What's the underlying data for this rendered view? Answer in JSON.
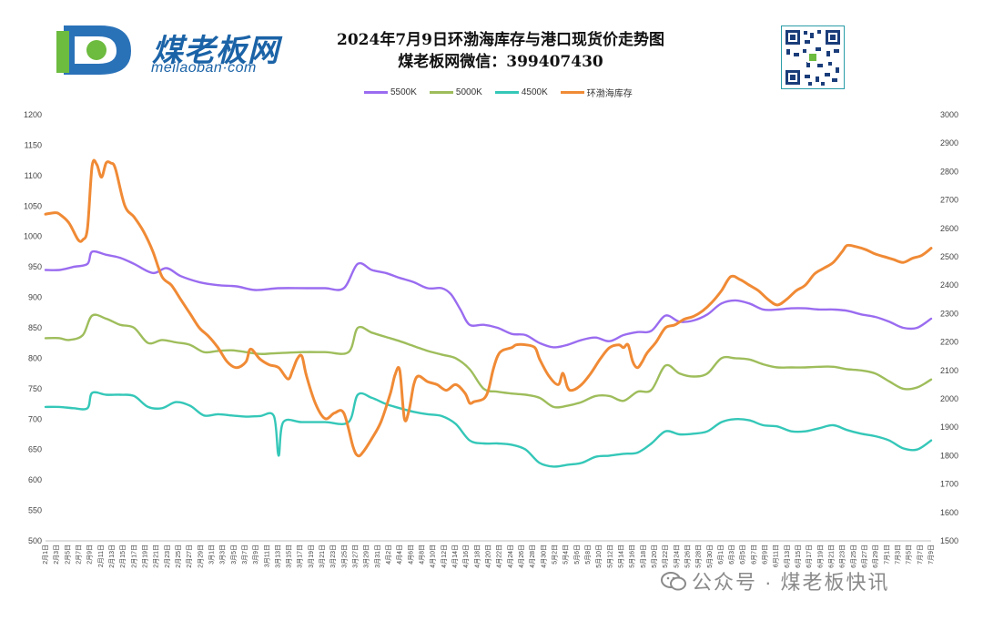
{
  "header": {
    "logo_main": "煤老板网",
    "logo_sub": "meilaoban·com",
    "title_line1": "2024年7月9日环渤海库存与港口现货价走势图",
    "title_line2": "煤老板网微信：399407430"
  },
  "watermark": {
    "text": "公众号 · 煤老板快讯"
  },
  "colors": {
    "s5500": "#9a6cf0",
    "s5000": "#9ebd5b",
    "s4500": "#34c7b8",
    "inventory": "#f08a35"
  },
  "chart_data": {
    "type": "line",
    "legend_position": "top",
    "grid": false,
    "y_left": {
      "min": 500,
      "max": 1200,
      "step": 50
    },
    "y_right": {
      "min": 1500,
      "max": 3000,
      "step": 100
    },
    "x_labels": [
      "2月1日",
      "2月3日",
      "2月5日",
      "2月7日",
      "2月9日",
      "2月11日",
      "2月13日",
      "2月15日",
      "2月17日",
      "2月19日",
      "2月21日",
      "2月23日",
      "2月25日",
      "2月27日",
      "2月29日",
      "3月1日",
      "3月3日",
      "3月5日",
      "3月7日",
      "3月9日",
      "3月11日",
      "3月13日",
      "3月15日",
      "3月17日",
      "3月19日",
      "3月21日",
      "3月23日",
      "3月25日",
      "3月27日",
      "3月29日",
      "3月31日",
      "4月2日",
      "4月4日",
      "4月6日",
      "4月8日",
      "4月10日",
      "4月12日",
      "4月14日",
      "4月16日",
      "4月18日",
      "4月20日",
      "4月22日",
      "4月24日",
      "4月26日",
      "4月28日",
      "4月30日",
      "5月2日",
      "5月4日",
      "5月6日",
      "5月8日",
      "5月10日",
      "5月12日",
      "5月14日",
      "5月16日",
      "5月18日",
      "5月20日",
      "5月22日",
      "5月24日",
      "5月26日",
      "5月28日",
      "5月30日",
      "6月1日",
      "6月3日",
      "6月5日",
      "6月7日",
      "6月9日",
      "6月11日",
      "6月13日",
      "6月15日",
      "6月17日",
      "6月19日",
      "6月21日",
      "6月23日",
      "6月25日",
      "6月27日",
      "6月29日",
      "7月1日",
      "7月3日",
      "7月5日",
      "7月7日",
      "7月9日"
    ],
    "series": [
      {
        "name": "5500K",
        "axis": "left",
        "points": [
          [
            0,
            945
          ],
          [
            3,
            945
          ],
          [
            6,
            950
          ],
          [
            9,
            955
          ],
          [
            10,
            975
          ],
          [
            13,
            970
          ],
          [
            16,
            965
          ],
          [
            19,
            955
          ],
          [
            23,
            940
          ],
          [
            26,
            948
          ],
          [
            29,
            935
          ],
          [
            33,
            925
          ],
          [
            37,
            920
          ],
          [
            41,
            918
          ],
          [
            45,
            912
          ],
          [
            50,
            915
          ],
          [
            56,
            915
          ],
          [
            60,
            915
          ],
          [
            64,
            915
          ],
          [
            67,
            955
          ],
          [
            70,
            945
          ],
          [
            73,
            940
          ],
          [
            76,
            932
          ],
          [
            79,
            925
          ],
          [
            82,
            915
          ],
          [
            85,
            915
          ],
          [
            87,
            905
          ],
          [
            89,
            880
          ],
          [
            91,
            855
          ],
          [
            94,
            855
          ],
          [
            97,
            850
          ],
          [
            100,
            840
          ],
          [
            103,
            838
          ],
          [
            106,
            825
          ],
          [
            109,
            818
          ],
          [
            112,
            822
          ],
          [
            115,
            830
          ],
          [
            118,
            834
          ],
          [
            121,
            828
          ],
          [
            124,
            838
          ],
          [
            127,
            843
          ],
          [
            130,
            845
          ],
          [
            133,
            870
          ],
          [
            136,
            860
          ],
          [
            139,
            862
          ],
          [
            142,
            872
          ],
          [
            145,
            890
          ],
          [
            148,
            895
          ],
          [
            151,
            890
          ],
          [
            154,
            880
          ],
          [
            157,
            880
          ],
          [
            160,
            882
          ],
          [
            163,
            882
          ],
          [
            166,
            880
          ],
          [
            169,
            880
          ],
          [
            172,
            878
          ],
          [
            175,
            872
          ],
          [
            178,
            868
          ],
          [
            181,
            860
          ],
          [
            184,
            850
          ],
          [
            187,
            850
          ],
          [
            190,
            865
          ]
        ]
      },
      {
        "name": "5000K",
        "axis": "left",
        "points": [
          [
            0,
            833
          ],
          [
            3,
            833
          ],
          [
            5,
            830
          ],
          [
            8,
            838
          ],
          [
            10,
            870
          ],
          [
            13,
            865
          ],
          [
            16,
            855
          ],
          [
            19,
            850
          ],
          [
            22,
            825
          ],
          [
            25,
            830
          ],
          [
            28,
            826
          ],
          [
            31,
            822
          ],
          [
            34,
            810
          ],
          [
            37,
            812
          ],
          [
            40,
            813
          ],
          [
            43,
            810
          ],
          [
            46,
            807
          ],
          [
            49,
            808
          ],
          [
            55,
            810
          ],
          [
            60,
            810
          ],
          [
            65,
            810
          ],
          [
            67,
            850
          ],
          [
            70,
            842
          ],
          [
            73,
            835
          ],
          [
            76,
            828
          ],
          [
            79,
            820
          ],
          [
            82,
            812
          ],
          [
            85,
            806
          ],
          [
            88,
            800
          ],
          [
            91,
            782
          ],
          [
            94,
            750
          ],
          [
            97,
            745
          ],
          [
            100,
            742
          ],
          [
            103,
            740
          ],
          [
            106,
            735
          ],
          [
            109,
            720
          ],
          [
            112,
            722
          ],
          [
            115,
            728
          ],
          [
            118,
            738
          ],
          [
            121,
            738
          ],
          [
            124,
            730
          ],
          [
            127,
            745
          ],
          [
            130,
            748
          ],
          [
            133,
            788
          ],
          [
            136,
            775
          ],
          [
            139,
            770
          ],
          [
            142,
            775
          ],
          [
            145,
            800
          ],
          [
            148,
            800
          ],
          [
            151,
            798
          ],
          [
            154,
            790
          ],
          [
            157,
            785
          ],
          [
            160,
            785
          ],
          [
            163,
            785
          ],
          [
            166,
            786
          ],
          [
            169,
            786
          ],
          [
            172,
            782
          ],
          [
            175,
            780
          ],
          [
            178,
            775
          ],
          [
            181,
            762
          ],
          [
            184,
            750
          ],
          [
            187,
            752
          ],
          [
            190,
            765
          ]
        ]
      },
      {
        "name": "4500K",
        "axis": "left",
        "points": [
          [
            0,
            720
          ],
          [
            3,
            720
          ],
          [
            6,
            718
          ],
          [
            9,
            718
          ],
          [
            10,
            743
          ],
          [
            13,
            740
          ],
          [
            16,
            740
          ],
          [
            19,
            738
          ],
          [
            22,
            720
          ],
          [
            25,
            718
          ],
          [
            28,
            728
          ],
          [
            31,
            722
          ],
          [
            34,
            706
          ],
          [
            37,
            708
          ],
          [
            40,
            706
          ],
          [
            43,
            704
          ],
          [
            46,
            705
          ],
          [
            49,
            705
          ],
          [
            50,
            640
          ],
          [
            51,
            695
          ],
          [
            55,
            695
          ],
          [
            60,
            695
          ],
          [
            65,
            695
          ],
          [
            67,
            740
          ],
          [
            70,
            735
          ],
          [
            73,
            725
          ],
          [
            76,
            718
          ],
          [
            79,
            712
          ],
          [
            82,
            708
          ],
          [
            85,
            705
          ],
          [
            88,
            692
          ],
          [
            91,
            665
          ],
          [
            94,
            660
          ],
          [
            97,
            660
          ],
          [
            100,
            658
          ],
          [
            103,
            650
          ],
          [
            106,
            628
          ],
          [
            109,
            622
          ],
          [
            112,
            625
          ],
          [
            115,
            628
          ],
          [
            118,
            638
          ],
          [
            121,
            640
          ],
          [
            124,
            643
          ],
          [
            127,
            645
          ],
          [
            130,
            660
          ],
          [
            133,
            680
          ],
          [
            136,
            675
          ],
          [
            139,
            676
          ],
          [
            142,
            680
          ],
          [
            145,
            695
          ],
          [
            148,
            700
          ],
          [
            151,
            698
          ],
          [
            154,
            690
          ],
          [
            157,
            688
          ],
          [
            160,
            680
          ],
          [
            163,
            680
          ],
          [
            166,
            685
          ],
          [
            169,
            690
          ],
          [
            172,
            682
          ],
          [
            175,
            676
          ],
          [
            178,
            672
          ],
          [
            181,
            665
          ],
          [
            184,
            652
          ],
          [
            187,
            650
          ],
          [
            190,
            665
          ]
        ]
      },
      {
        "name": "环渤海库存",
        "axis": "right",
        "points": [
          [
            0,
            2650
          ],
          [
            2,
            2655
          ],
          [
            3,
            2650
          ],
          [
            5,
            2620
          ],
          [
            7,
            2560
          ],
          [
            8,
            2560
          ],
          [
            9,
            2600
          ],
          [
            10,
            2820
          ],
          [
            11,
            2825
          ],
          [
            12,
            2780
          ],
          [
            13,
            2830
          ],
          [
            14,
            2830
          ],
          [
            15,
            2810
          ],
          [
            17,
            2680
          ],
          [
            19,
            2640
          ],
          [
            21,
            2590
          ],
          [
            23,
            2520
          ],
          [
            25,
            2430
          ],
          [
            27,
            2400
          ],
          [
            29,
            2350
          ],
          [
            31,
            2300
          ],
          [
            33,
            2250
          ],
          [
            35,
            2220
          ],
          [
            37,
            2180
          ],
          [
            39,
            2130
          ],
          [
            41,
            2110
          ],
          [
            43,
            2130
          ],
          [
            44,
            2175
          ],
          [
            46,
            2140
          ],
          [
            48,
            2120
          ],
          [
            50,
            2110
          ],
          [
            52,
            2070
          ],
          [
            53,
            2100
          ],
          [
            54,
            2140
          ],
          [
            55,
            2150
          ],
          [
            56,
            2080
          ],
          [
            58,
            1980
          ],
          [
            60,
            1930
          ],
          [
            62,
            1950
          ],
          [
            64,
            1950
          ],
          [
            66,
            1830
          ],
          [
            67,
            1800
          ],
          [
            68,
            1810
          ],
          [
            70,
            1860
          ],
          [
            72,
            1920
          ],
          [
            74,
            2020
          ],
          [
            75,
            2085
          ],
          [
            76,
            2100
          ],
          [
            77,
            1930
          ],
          [
            78,
            1960
          ],
          [
            79,
            2050
          ],
          [
            80,
            2080
          ],
          [
            82,
            2060
          ],
          [
            84,
            2050
          ],
          [
            86,
            2030
          ],
          [
            88,
            2050
          ],
          [
            90,
            2020
          ],
          [
            91,
            1985
          ],
          [
            92,
            1990
          ],
          [
            94,
            2000
          ],
          [
            95,
            2030
          ],
          [
            96,
            2100
          ],
          [
            97,
            2150
          ],
          [
            98,
            2170
          ],
          [
            100,
            2180
          ],
          [
            101,
            2190
          ],
          [
            103,
            2190
          ],
          [
            105,
            2180
          ],
          [
            106,
            2140
          ],
          [
            108,
            2080
          ],
          [
            110,
            2050
          ],
          [
            111,
            2090
          ],
          [
            112,
            2040
          ],
          [
            113,
            2030
          ],
          [
            115,
            2050
          ],
          [
            117,
            2090
          ],
          [
            119,
            2140
          ],
          [
            121,
            2180
          ],
          [
            123,
            2190
          ],
          [
            124,
            2180
          ],
          [
            125,
            2190
          ],
          [
            126,
            2130
          ],
          [
            127,
            2110
          ],
          [
            128,
            2130
          ],
          [
            129,
            2160
          ],
          [
            131,
            2200
          ],
          [
            133,
            2250
          ],
          [
            135,
            2260
          ],
          [
            137,
            2280
          ],
          [
            139,
            2290
          ],
          [
            141,
            2310
          ],
          [
            143,
            2340
          ],
          [
            145,
            2380
          ],
          [
            147,
            2430
          ],
          [
            149,
            2420
          ],
          [
            151,
            2400
          ],
          [
            153,
            2380
          ],
          [
            155,
            2350
          ],
          [
            157,
            2330
          ],
          [
            159,
            2350
          ],
          [
            161,
            2380
          ],
          [
            163,
            2400
          ],
          [
            165,
            2440
          ],
          [
            167,
            2460
          ],
          [
            169,
            2480
          ],
          [
            171,
            2520
          ],
          [
            172,
            2540
          ],
          [
            174,
            2535
          ],
          [
            176,
            2525
          ],
          [
            178,
            2510
          ],
          [
            180,
            2500
          ],
          [
            182,
            2490
          ],
          [
            184,
            2480
          ],
          [
            186,
            2495
          ],
          [
            188,
            2505
          ],
          [
            190,
            2530
          ]
        ]
      }
    ]
  }
}
